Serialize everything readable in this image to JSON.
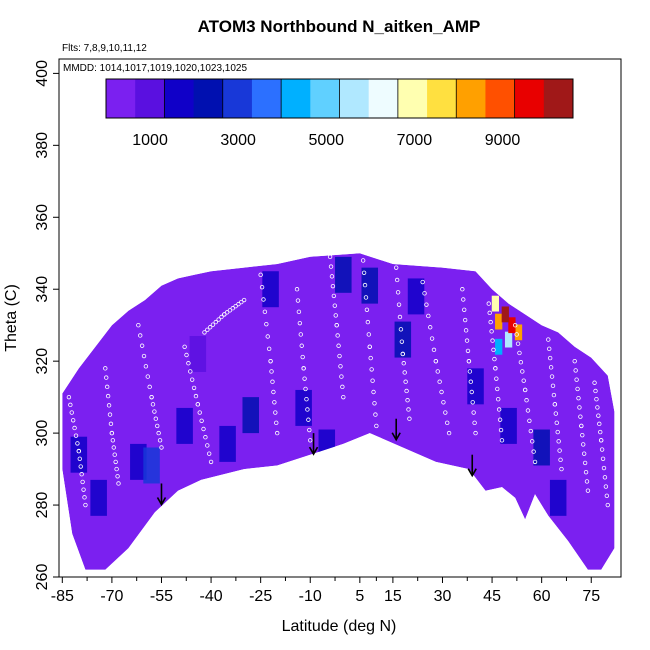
{
  "chart_data": {
    "type": "heatmap",
    "title": "ATOM3 Northbound N_aitken_AMP",
    "annotations": {
      "flights": "Flts: 7,8,9,10,11,12",
      "dates": "MMDD: 1014,1017,1019,1020,1023,1025"
    },
    "xlabel": "Latitude (deg N)",
    "ylabel": "Theta (C)",
    "xlim": [
      -86,
      84
    ],
    "ylim": [
      260,
      404
    ],
    "x_ticks": [
      -85,
      -70,
      -55,
      -40,
      -25,
      -10,
      5,
      15,
      30,
      45,
      60,
      75
    ],
    "x_tick_labels": [
      "-85",
      "-70",
      "-55",
      "-40",
      "-25",
      "-10",
      "5",
      "15",
      "30",
      "45",
      "60",
      "75"
    ],
    "y_ticks": [
      260,
      280,
      300,
      320,
      340,
      360,
      380,
      400
    ],
    "y_tick_labels": [
      "260",
      "280",
      "300",
      "320",
      "340",
      "360",
      "380",
      "400"
    ],
    "colorbar": {
      "range": [
        0,
        10600
      ],
      "ticks": [
        1000,
        3000,
        5000,
        7000,
        9000
      ],
      "tick_labels": [
        "1000",
        "3000",
        "5000",
        "7000",
        "9000"
      ],
      "colors": [
        "#7b20f0",
        "#5a10e0",
        "#1000c8",
        "#0010b0",
        "#1838d8",
        "#2c70ff",
        "#00b0ff",
        "#60d0ff",
        "#b0e8ff",
        "#eefcff",
        "#ffffb0",
        "#ffe040",
        "#ffa000",
        "#ff5000",
        "#e80000",
        "#a01818"
      ]
    },
    "field_base_value": 500,
    "envelope_top": [
      [
        -85,
        311
      ],
      [
        -80,
        318
      ],
      [
        -75,
        324
      ],
      [
        -70,
        330
      ],
      [
        -65,
        334
      ],
      [
        -60,
        337
      ],
      [
        -55,
        341
      ],
      [
        -50,
        343
      ],
      [
        -45,
        344
      ],
      [
        -40,
        345
      ],
      [
        -30,
        346
      ],
      [
        -20,
        347
      ],
      [
        -10,
        349
      ],
      [
        5,
        350
      ],
      [
        15,
        347
      ],
      [
        30,
        346
      ],
      [
        40,
        345
      ],
      [
        45,
        340
      ],
      [
        50,
        336
      ],
      [
        55,
        333
      ],
      [
        60,
        330
      ],
      [
        65,
        328
      ],
      [
        70,
        324
      ],
      [
        75,
        321
      ],
      [
        80,
        316
      ],
      [
        82,
        306
      ]
    ],
    "envelope_bottom": [
      [
        -85,
        290
      ],
      [
        -82,
        272
      ],
      [
        -78,
        262
      ],
      [
        -72,
        262
      ],
      [
        -65,
        268
      ],
      [
        -57,
        278
      ],
      [
        -50,
        284
      ],
      [
        -43,
        287
      ],
      [
        -30,
        290
      ],
      [
        -20,
        291
      ],
      [
        -10,
        294
      ],
      [
        0,
        297
      ],
      [
        8,
        300
      ],
      [
        18,
        296
      ],
      [
        28,
        292
      ],
      [
        38,
        290
      ],
      [
        43,
        284
      ],
      [
        48,
        285
      ],
      [
        52,
        282
      ],
      [
        55,
        276
      ],
      [
        58,
        283
      ],
      [
        62,
        277
      ],
      [
        68,
        270
      ],
      [
        74,
        262
      ],
      [
        78,
        262
      ],
      [
        82,
        268
      ]
    ],
    "field_patches": [
      {
        "lat": -80,
        "theta": 294,
        "value": 1800
      },
      {
        "lat": -74,
        "theta": 282,
        "value": 1600
      },
      {
        "lat": -62,
        "theta": 292,
        "value": 1400
      },
      {
        "lat": -48,
        "theta": 302,
        "value": 1500
      },
      {
        "lat": -44,
        "theta": 322,
        "value": 1200
      },
      {
        "lat": -35,
        "theta": 297,
        "value": 1900
      },
      {
        "lat": -28,
        "theta": 305,
        "value": 2000
      },
      {
        "lat": -22,
        "theta": 340,
        "value": 1600
      },
      {
        "lat": -12,
        "theta": 307,
        "value": 1700
      },
      {
        "lat": -5,
        "theta": 296,
        "value": 1900
      },
      {
        "lat": 0,
        "theta": 344,
        "value": 2200
      },
      {
        "lat": 8,
        "theta": 341,
        "value": 2600
      },
      {
        "lat": 18,
        "theta": 326,
        "value": 2400
      },
      {
        "lat": 22,
        "theta": 338,
        "value": 1800
      },
      {
        "lat": 40,
        "theta": 313,
        "value": 1900
      },
      {
        "lat": 50,
        "theta": 302,
        "value": 1700
      },
      {
        "lat": 60,
        "theta": 296,
        "value": 2000
      },
      {
        "lat": 65,
        "theta": 282,
        "value": 1600
      },
      {
        "lat": -58,
        "theta": 291,
        "value": 3200
      },
      {
        "lat": 46,
        "theta": 336,
        "value": 6800
      },
      {
        "lat": 47,
        "theta": 331,
        "value": 8200
      },
      {
        "lat": 49,
        "theta": 333,
        "value": 10200
      },
      {
        "lat": 51,
        "theta": 330,
        "value": 9400
      },
      {
        "lat": 53,
        "theta": 328,
        "value": 8000
      },
      {
        "lat": 50,
        "theta": 326,
        "value": 5800
      },
      {
        "lat": 47,
        "theta": 324,
        "value": 4600
      }
    ],
    "arrows": [
      {
        "lat": -55,
        "theta": 286
      },
      {
        "lat": -9,
        "theta": 300
      },
      {
        "lat": 16,
        "theta": 304
      },
      {
        "lat": 39,
        "theta": 294
      }
    ],
    "sample_tracks": [
      [
        [
          -83,
          310
        ],
        [
          -80,
          295
        ],
        [
          -78,
          280
        ]
      ],
      [
        [
          -72,
          318
        ],
        [
          -70,
          300
        ],
        [
          -68,
          286
        ]
      ],
      [
        [
          -62,
          330
        ],
        [
          -58,
          310
        ],
        [
          -55,
          296
        ]
      ],
      [
        [
          -48,
          324
        ],
        [
          -44,
          308
        ],
        [
          -40,
          292
        ]
      ],
      [
        [
          -42,
          328
        ],
        [
          -36,
          333
        ],
        [
          -30,
          337
        ]
      ],
      [
        [
          -25,
          344
        ],
        [
          -22,
          320
        ],
        [
          -20,
          300
        ]
      ],
      [
        [
          -14,
          340
        ],
        [
          -12,
          318
        ],
        [
          -10,
          298
        ]
      ],
      [
        [
          -4,
          349
        ],
        [
          -2,
          330
        ],
        [
          0,
          310
        ]
      ],
      [
        [
          6,
          348
        ],
        [
          8,
          324
        ],
        [
          10,
          302
        ]
      ],
      [
        [
          16,
          346
        ],
        [
          18,
          322
        ],
        [
          20,
          304
        ]
      ],
      [
        [
          24,
          342
        ],
        [
          28,
          320
        ],
        [
          32,
          300
        ]
      ],
      [
        [
          36,
          340
        ],
        [
          38,
          320
        ],
        [
          40,
          300
        ]
      ],
      [
        [
          44,
          336
        ],
        [
          46,
          318
        ],
        [
          48,
          298
        ]
      ],
      [
        [
          52,
          330
        ],
        [
          55,
          312
        ],
        [
          58,
          292
        ]
      ],
      [
        [
          62,
          326
        ],
        [
          64,
          308
        ],
        [
          66,
          290
        ]
      ],
      [
        [
          70,
          320
        ],
        [
          72,
          302
        ],
        [
          74,
          284
        ]
      ],
      [
        [
          76,
          314
        ],
        [
          78,
          298
        ],
        [
          80,
          280
        ]
      ]
    ]
  }
}
